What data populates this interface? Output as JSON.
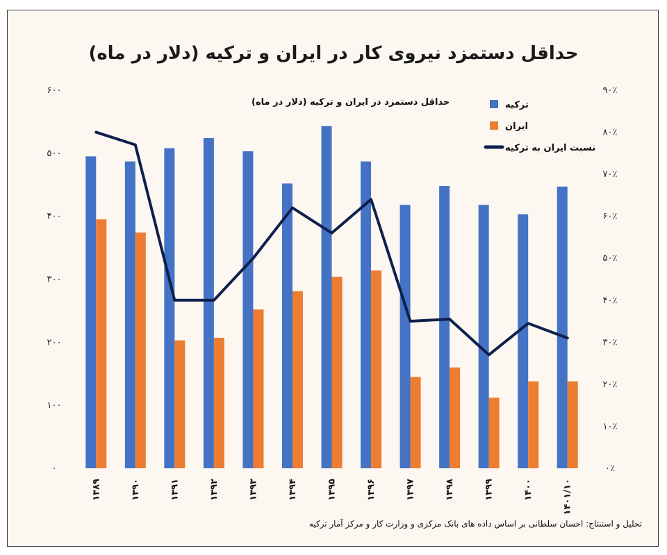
{
  "page": {
    "title": "حداقل دستمزد نیروی کار در ایران و ترکیه (دلار در ماه)",
    "footer": "تحلیل و استنتاج: احسان سلطانی بر اساس داده های بانک مرکزی و وزارت کار و مرکز آمار ترکیه"
  },
  "chart_data": {
    "type": "bar",
    "title": "حداقل دستمزد نیروی کار در ایران و ترکیه (دلار در ماه)",
    "inner_title": "حداقل دستمزد در ایران و ترکیه (دلار در ماه)",
    "categories": [
      "۱۳۸۹",
      "۱۳۹۰",
      "۱۳۹۱",
      "۱۳۹۲",
      "۱۳۹۳",
      "۱۳۹۴",
      "۱۳۹۵",
      "۱۳۹۶",
      "۱۳۹۷",
      "۱۳۹۸",
      "۱۳۹۹",
      "۱۴۰۰",
      "۱۴۰۱/۱۰"
    ],
    "series": [
      {
        "name": "ترکیه",
        "kind": "bar",
        "axis": "left",
        "color": "#4472c4",
        "values": [
          495,
          487,
          508,
          524,
          503,
          452,
          543,
          487,
          418,
          448,
          418,
          403,
          447
        ]
      },
      {
        "name": "ایران",
        "kind": "bar",
        "axis": "left",
        "color": "#ed7d31",
        "values": [
          395,
          374,
          203,
          207,
          252,
          281,
          304,
          314,
          145,
          160,
          112,
          138,
          138
        ]
      },
      {
        "name": "نسبت ایران به ترکیه",
        "kind": "line",
        "axis": "right",
        "color": "#0f1f4d",
        "values": [
          80,
          77,
          40,
          40,
          50,
          62,
          56,
          64,
          35,
          35.5,
          27,
          34.5,
          31
        ]
      }
    ],
    "y_left": {
      "ylim": [
        0,
        600
      ],
      "ticks": [
        0,
        100,
        200,
        300,
        400,
        500,
        600
      ],
      "tick_labels": [
        "۰",
        "۱۰۰",
        "۲۰۰",
        "۳۰۰",
        "۴۰۰",
        "۵۰۰",
        "۶۰۰"
      ]
    },
    "y_right": {
      "ylim": [
        0,
        90
      ],
      "ticks": [
        0,
        10,
        20,
        30,
        40,
        50,
        60,
        70,
        80,
        90
      ],
      "tick_labels": [
        "۰٪",
        "۱۰٪",
        "۲۰٪",
        "۳۰٪",
        "۴۰٪",
        "۵۰٪",
        "۶۰٪",
        "۷۰٪",
        "۸۰٪",
        "۹۰٪"
      ]
    },
    "grid": false,
    "legend_position": "top-right"
  }
}
